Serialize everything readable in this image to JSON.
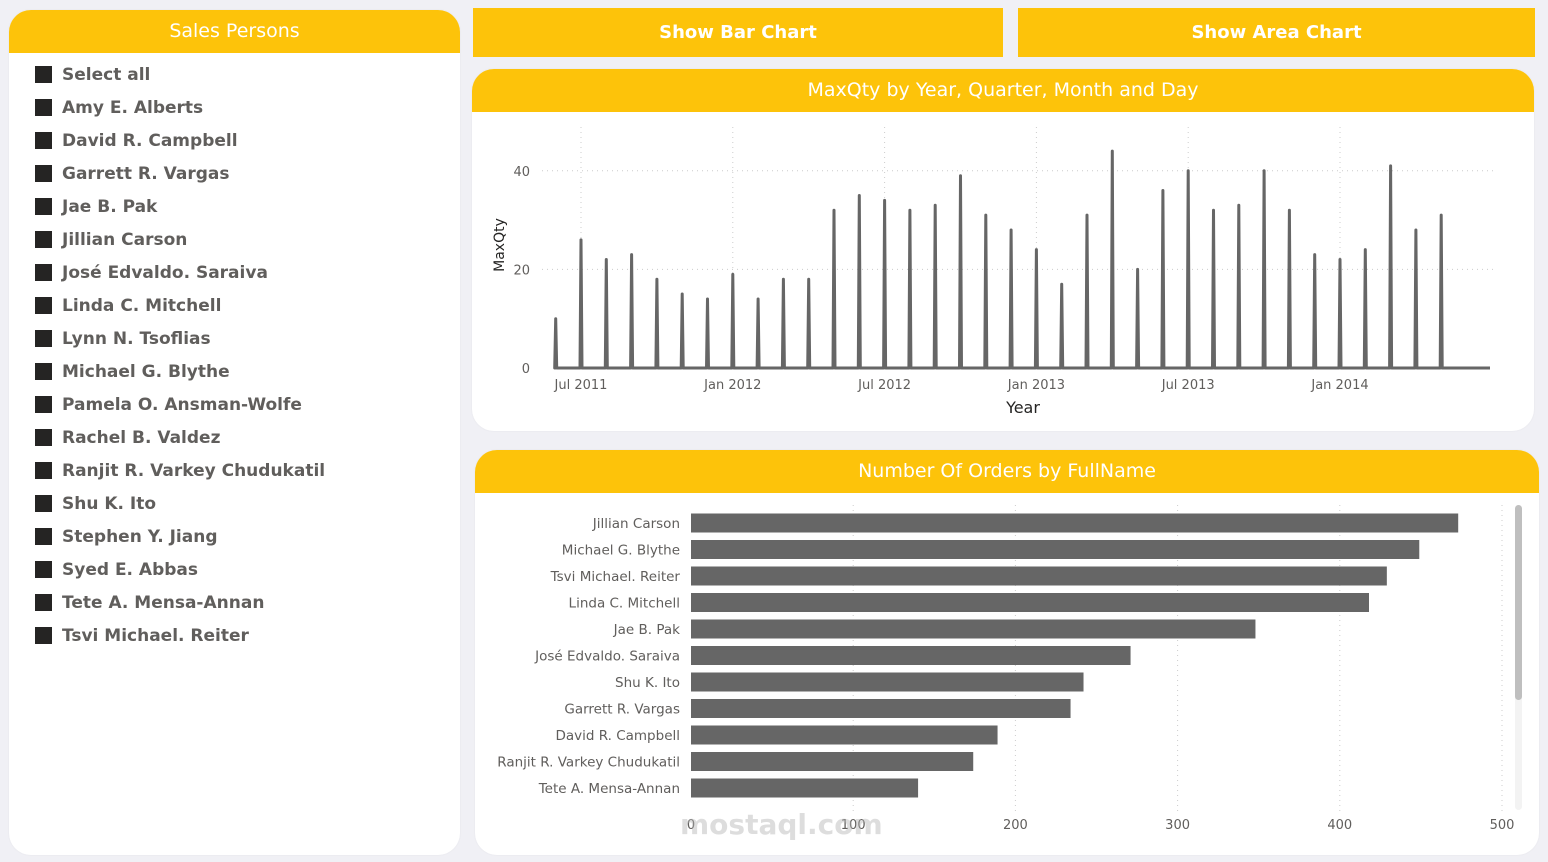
{
  "colors": {
    "accent": "#FDC30A",
    "bar": "#666666",
    "background": "#F0F0F5",
    "checkbox": "#252423"
  },
  "slicer": {
    "title": "Sales Persons",
    "items": [
      "Select all",
      "Amy E. Alberts",
      "David R. Campbell",
      "Garrett R. Vargas",
      "Jae B. Pak",
      "Jillian Carson",
      "José Edvaldo. Saraiva",
      "Linda C. Mitchell",
      "Lynn N. Tsoflias",
      "Michael G. Blythe",
      "Pamela O. Ansman-Wolfe",
      "Rachel B. Valdez",
      "Ranjit R. Varkey Chudukatil",
      "Shu K. Ito",
      "Stephen Y. Jiang",
      "Syed E. Abbas",
      "Tete A. Mensa-Annan",
      "Tsvi Michael. Reiter"
    ]
  },
  "buttons": {
    "bar": "Show Bar Chart",
    "area": "Show Area Chart"
  },
  "watermark": "mostaql.com",
  "chart_data": [
    {
      "type": "line",
      "title": "MaxQty by Year, Quarter, Month and Day",
      "xlabel": "Year",
      "ylabel": "MaxQty",
      "x_ticks": [
        "Jul 2011",
        "Jan 2012",
        "Jul 2012",
        "Jan 2013",
        "Jul 2013",
        "Jan 2014"
      ],
      "y_ticks": [
        "0",
        "20",
        "40"
      ],
      "ylim": [
        0,
        45
      ],
      "grid": true,
      "x": [
        "2011-06",
        "2011-07",
        "2011-08",
        "2011-09",
        "2011-10",
        "2011-11",
        "2011-12",
        "2012-01",
        "2012-02",
        "2012-03",
        "2012-04",
        "2012-05",
        "2012-06",
        "2012-07",
        "2012-08",
        "2012-09",
        "2012-10",
        "2012-11",
        "2012-12",
        "2013-01",
        "2013-02",
        "2013-03",
        "2013-04",
        "2013-05",
        "2013-06",
        "2013-07",
        "2013-08",
        "2013-09",
        "2013-10",
        "2013-11",
        "2013-12",
        "2014-01",
        "2014-02",
        "2014-03",
        "2014-04",
        "2014-05"
      ],
      "y": [
        10,
        26,
        22,
        23,
        18,
        15,
        14,
        19,
        14,
        18,
        18,
        32,
        35,
        34,
        32,
        33,
        39,
        31,
        28,
        24,
        17,
        31,
        44,
        20,
        36,
        40,
        32,
        33,
        40,
        32,
        23,
        22,
        24,
        41,
        28,
        31
      ]
    },
    {
      "type": "bar",
      "orientation": "horizontal",
      "title": "Number Of Orders by FullName",
      "categories": [
        "Jillian Carson",
        "Michael G. Blythe",
        "Tsvi Michael. Reiter",
        "Linda C. Mitchell",
        "Jae B. Pak",
        "José Edvaldo. Saraiva",
        "Shu K. Ito",
        "Garrett R. Vargas",
        "David R. Campbell",
        "Ranjit R. Varkey Chudukatil",
        "Tete A. Mensa-Annan"
      ],
      "values": [
        473,
        449,
        429,
        418,
        348,
        271,
        242,
        234,
        189,
        174,
        140
      ],
      "x_ticks": [
        "0",
        "100",
        "200",
        "300",
        "400",
        "500"
      ],
      "xlim": [
        0,
        500
      ],
      "grid": true
    }
  ]
}
